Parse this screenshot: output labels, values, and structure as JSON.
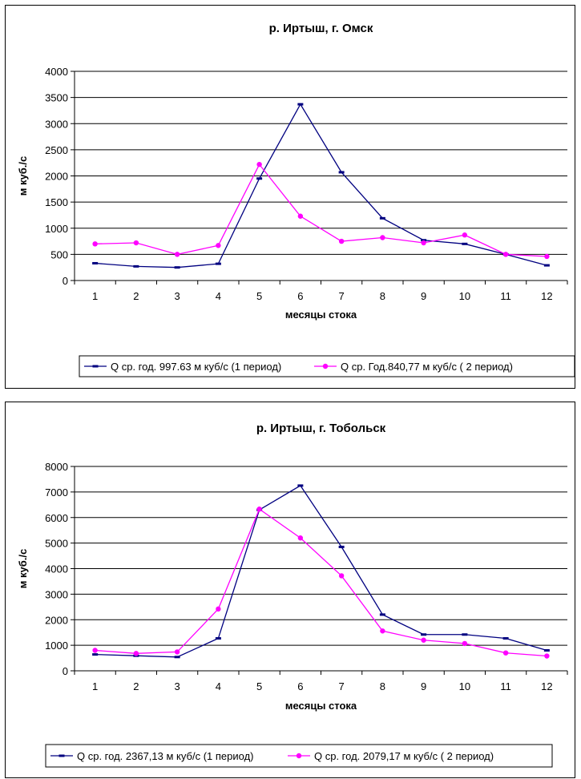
{
  "chart_data": [
    {
      "type": "line",
      "title": "р. Иртыш, г. Омск",
      "xlabel": "месяцы стока",
      "ylabel": "м куб./с",
      "categories": [
        "1",
        "2",
        "3",
        "4",
        "5",
        "6",
        "7",
        "8",
        "9",
        "10",
        "11",
        "12"
      ],
      "ylim": [
        0,
        4000
      ],
      "yticks": [
        0,
        500,
        1000,
        1500,
        2000,
        2500,
        3000,
        3500,
        4000
      ],
      "grid": true,
      "legend_position": "bottom",
      "series": [
        {
          "name": "Q ср. год. 997.63 м куб/с (1 период)",
          "color": "#000080",
          "marker": "dash",
          "values": [
            330,
            270,
            250,
            320,
            1950,
            3370,
            2070,
            1190,
            770,
            700,
            500,
            290
          ]
        },
        {
          "name": "Q ср. Год.840,77 м куб/с ( 2 период)",
          "color": "#ff00ff",
          "marker": "circle",
          "values": [
            700,
            720,
            500,
            670,
            2220,
            1230,
            750,
            820,
            720,
            870,
            500,
            460
          ]
        }
      ]
    },
    {
      "type": "line",
      "title": "р. Иртыш, г. Тобольск",
      "xlabel": "месяцы стока",
      "ylabel": "м куб./с",
      "categories": [
        "1",
        "2",
        "3",
        "4",
        "5",
        "6",
        "7",
        "8",
        "9",
        "10",
        "11",
        "12"
      ],
      "ylim": [
        0,
        8000
      ],
      "yticks": [
        0,
        1000,
        2000,
        3000,
        4000,
        5000,
        6000,
        7000,
        8000
      ],
      "grid": true,
      "legend_position": "bottom",
      "series": [
        {
          "name": "Q ср. год. 2367,13 м куб/с (1 период)",
          "color": "#000080",
          "marker": "dash",
          "values": [
            640,
            590,
            540,
            1270,
            6300,
            7250,
            4850,
            2200,
            1420,
            1420,
            1270,
            800
          ]
        },
        {
          "name": "Q ср. год. 2079,17 м куб/с ( 2 период)",
          "color": "#ff00ff",
          "marker": "circle",
          "values": [
            800,
            680,
            740,
            2420,
            6330,
            5200,
            3720,
            1560,
            1200,
            1070,
            700,
            580
          ]
        }
      ]
    }
  ]
}
